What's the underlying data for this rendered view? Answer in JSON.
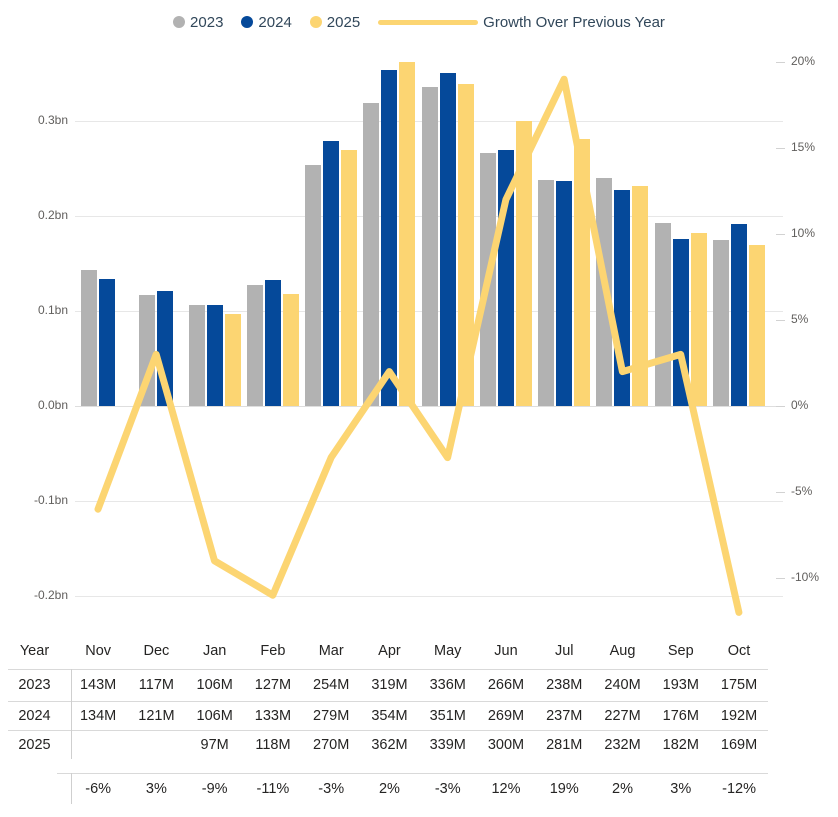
{
  "colors": {
    "bar_2023": "#B2B2B2",
    "bar_2024": "#05499A",
    "bar_2025": "#FCD572",
    "growth_line": "#FCD572",
    "legend_text": "#31475A",
    "axis_text": "#605E5C",
    "table_text": "#252423",
    "gridline": "#E7E7E7",
    "table_rule": "#D9D9D9"
  },
  "legend": {
    "items": [
      {
        "label": "2023",
        "swatch": "dot",
        "color_key": "bar_2023"
      },
      {
        "label": "2024",
        "swatch": "dot",
        "color_key": "bar_2024"
      },
      {
        "label": "2025",
        "swatch": "dot",
        "color_key": "bar_2025"
      },
      {
        "label": "Growth Over Previous Year",
        "swatch": "line",
        "color_key": "growth_line"
      }
    ]
  },
  "chart_data": {
    "type": "bar",
    "subtype": "clustered-column-with-line",
    "categories": [
      "Nov",
      "Dec",
      "Jan",
      "Feb",
      "Mar",
      "Apr",
      "May",
      "Jun",
      "Jul",
      "Aug",
      "Sep",
      "Oct"
    ],
    "series": [
      {
        "name": "2023",
        "type": "bar",
        "axis": "left",
        "unit": "M",
        "color_key": "bar_2023",
        "values": [
          143,
          117,
          106,
          127,
          254,
          319,
          336,
          266,
          238,
          240,
          193,
          175
        ]
      },
      {
        "name": "2024",
        "type": "bar",
        "axis": "left",
        "unit": "M",
        "color_key": "bar_2024",
        "values": [
          134,
          121,
          106,
          133,
          279,
          354,
          351,
          269,
          237,
          227,
          176,
          192
        ]
      },
      {
        "name": "2025",
        "type": "bar",
        "axis": "left",
        "unit": "M",
        "color_key": "bar_2025",
        "values": [
          null,
          null,
          97,
          118,
          270,
          362,
          339,
          300,
          281,
          232,
          182,
          169
        ]
      },
      {
        "name": "Growth Over Previous Year",
        "type": "line",
        "axis": "right",
        "unit": "%",
        "color_key": "growth_line",
        "values": [
          -6,
          3,
          -9,
          -11,
          -3,
          2,
          -3,
          12,
          19,
          2,
          3,
          -12
        ]
      }
    ],
    "left_axis": {
      "tick_labels": [
        "0.3bn",
        "0.2bn",
        "0.1bn",
        "0.0bn",
        "-0.1bn",
        "-0.2bn"
      ],
      "tick_values_bn": [
        0.3,
        0.2,
        0.1,
        0.0,
        -0.1,
        -0.2
      ],
      "range_bn": [
        -0.25,
        0.38
      ],
      "grid": true
    },
    "right_axis": {
      "tick_labels": [
        "20%",
        "15%",
        "10%",
        "5%",
        "0%",
        "-5%",
        "-10%"
      ],
      "tick_values_pct": [
        20,
        15,
        10,
        5,
        0,
        -5,
        -10
      ],
      "range_pct": [
        -12.5,
        20
      ],
      "grid": false
    },
    "legend_position": "top"
  },
  "table": {
    "header": [
      "Year",
      "Nov",
      "Dec",
      "Jan",
      "Feb",
      "Mar",
      "Apr",
      "May",
      "Jun",
      "Jul",
      "Aug",
      "Sep",
      "Oct"
    ],
    "rows": [
      {
        "label": "2023",
        "cells": [
          "143M",
          "117M",
          "106M",
          "127M",
          "254M",
          "319M",
          "336M",
          "266M",
          "238M",
          "240M",
          "193M",
          "175M"
        ]
      },
      {
        "label": "2024",
        "cells": [
          "134M",
          "121M",
          "106M",
          "133M",
          "279M",
          "354M",
          "351M",
          "269M",
          "237M",
          "227M",
          "176M",
          "192M"
        ]
      },
      {
        "label": "2025",
        "cells": [
          "",
          "",
          "97M",
          "118M",
          "270M",
          "362M",
          "339M",
          "300M",
          "281M",
          "232M",
          "182M",
          "169M"
        ]
      }
    ],
    "growth_row": {
      "label": "",
      "cells": [
        "-6%",
        "3%",
        "-9%",
        "-11%",
        "-3%",
        "2%",
        "-3%",
        "12%",
        "19%",
        "2%",
        "3%",
        "-12%"
      ]
    }
  }
}
